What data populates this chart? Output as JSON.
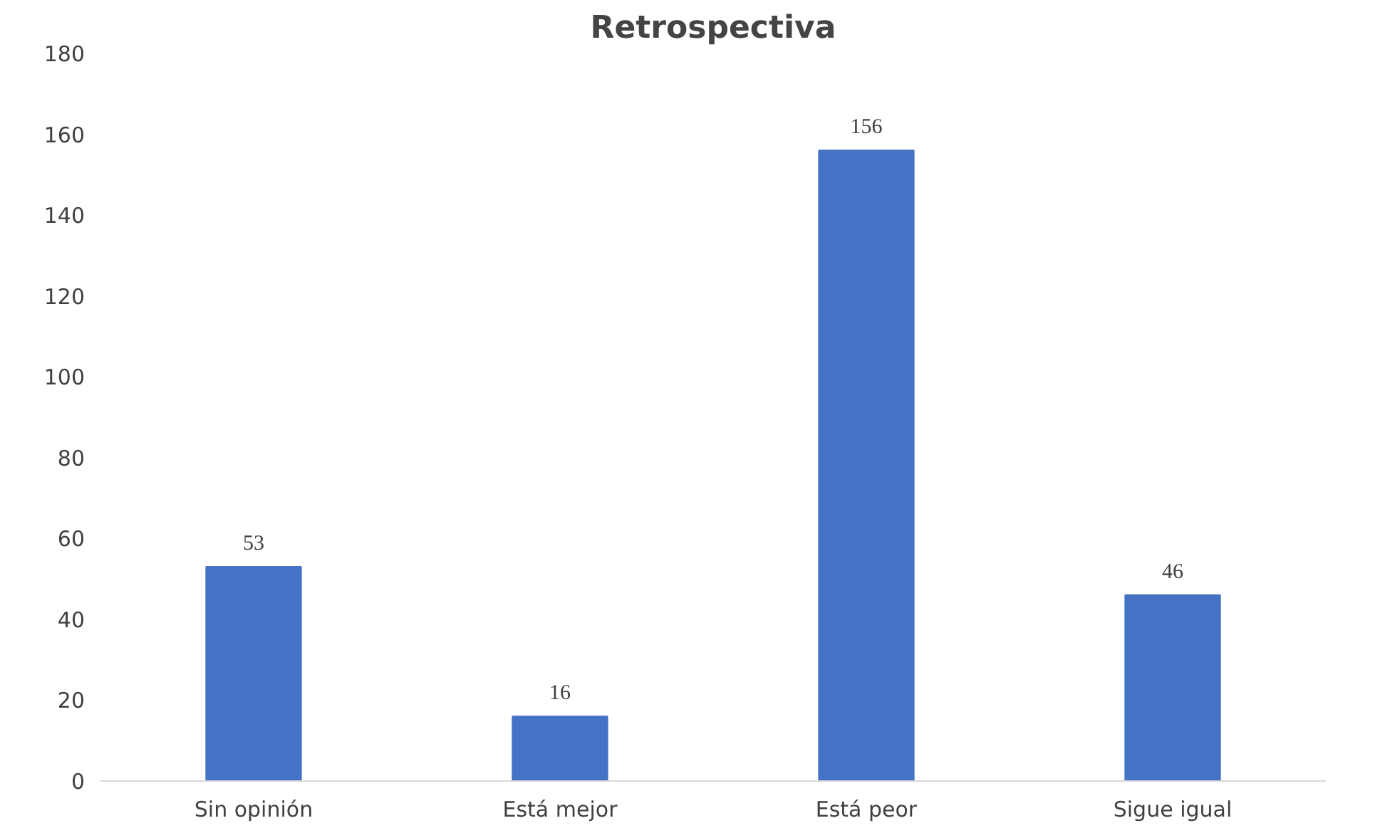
{
  "chart_data": {
    "type": "bar",
    "title": "Retrospectiva",
    "categories": [
      "Sin opinión",
      "Está mejor",
      "Está peor",
      "Sigue igual"
    ],
    "values": [
      53,
      16,
      156,
      46
    ],
    "color": "#4472c4",
    "ylim": [
      0,
      180
    ],
    "yticks": [
      0,
      20,
      40,
      60,
      80,
      100,
      120,
      140,
      160,
      180
    ],
    "data_labels": true
  }
}
